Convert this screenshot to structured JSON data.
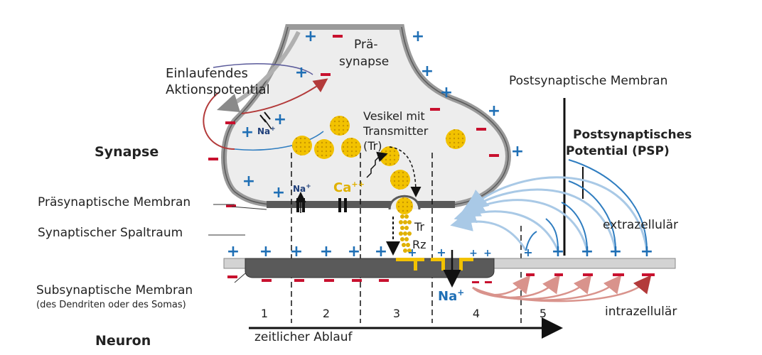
{
  "labels": {
    "prae_synapse_1": "Prä-",
    "prae_synapse_2": "synapse",
    "einlaufend_1": "Einlaufendes",
    "einlaufend_2": "Aktionspotential",
    "synapse": "Synapse",
    "vesikel_1": "Vesikel mit",
    "vesikel_2": "Transmitter",
    "vesikel_3": "(Tr)",
    "postsyn_membran": "Postsynaptische Membran",
    "psp_1": "Postsynaptisches",
    "psp_2": "Potential (PSP)",
    "praesyn_membran": "Präsynaptische Membran",
    "spaltraum": "Synaptischer Spaltraum",
    "extrazellulaer": "extrazellulär",
    "intrazellulaer": "intrazellulär",
    "subsyn_1": "Subsynaptische Membran",
    "subsyn_2": "(des Dendriten oder des Somas)",
    "neuron": "Neuron",
    "zeitlich": "zeitlicher Ablauf",
    "tr": "Tr",
    "rz": "Rz",
    "na_small": "Na",
    "na_small_2": "Na",
    "na_big": "Na",
    "plus_sup": "+",
    "ca": "Ca",
    "ca_sup": "++"
  },
  "phases": [
    "1",
    "2",
    "3",
    "4",
    "5"
  ],
  "colors": {
    "plus": "#1f6fb5",
    "minus": "#c8102e",
    "vesicle": "#f2c200",
    "membrane_dark": "#5a5a5a",
    "membrane_light": "#c8c8c8",
    "arrow_blue_light": "#a9c9e6",
    "arrow_blue_dark": "#2f7dc0",
    "arrow_red": "#b33a3a"
  },
  "icons": {
    "channel": "ion-channel-icon",
    "vesicle": "vesicle-icon",
    "receptor": "receptor-icon"
  }
}
